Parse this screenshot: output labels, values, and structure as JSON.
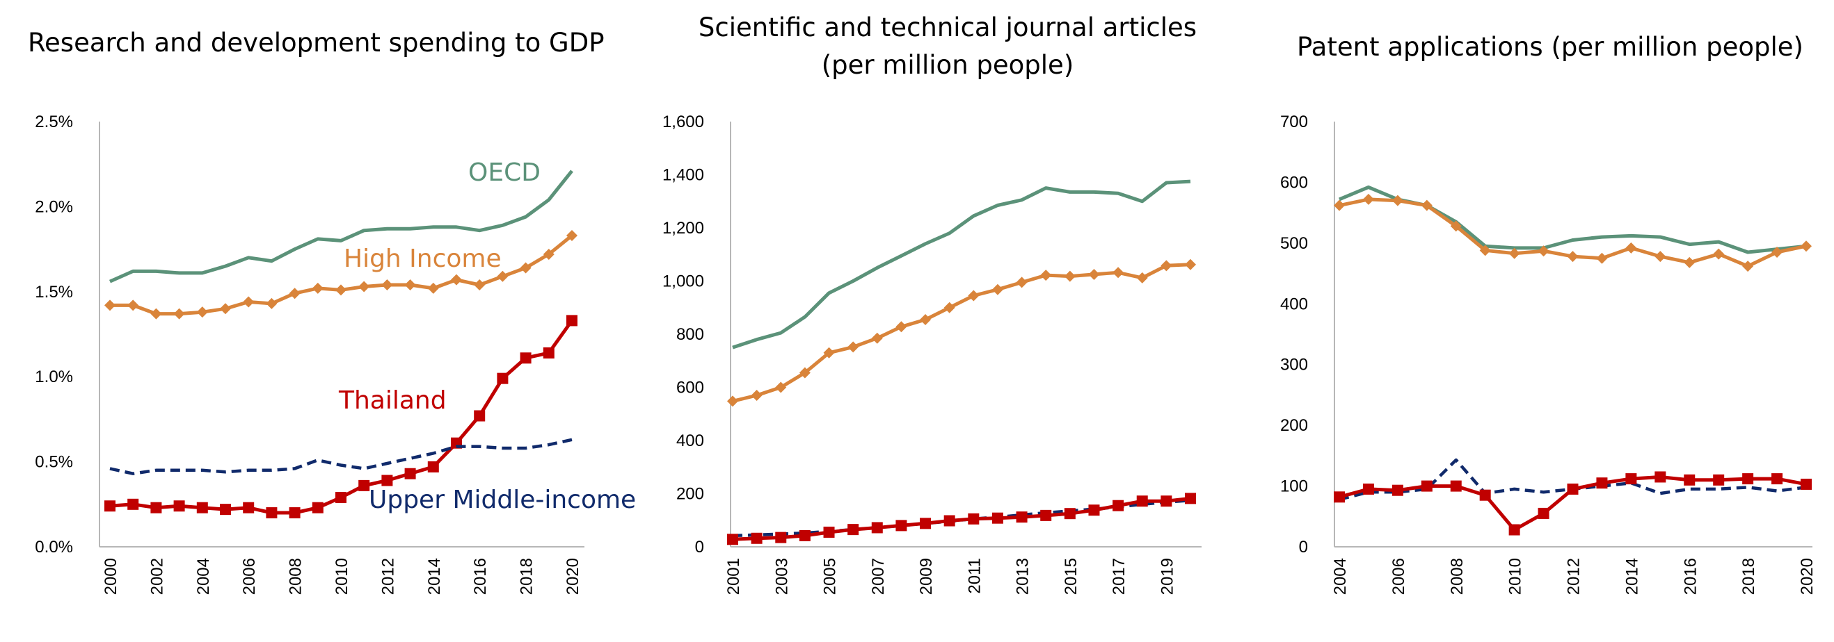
{
  "colors": {
    "oecd": "#5b9279",
    "high_income": "#d9843a",
    "thailand": "#c00000",
    "upper_middle": "#102a6b"
  },
  "chart_data": [
    {
      "type": "line",
      "title": "Research and development spending to GDP",
      "xlabel": "",
      "ylabel": "",
      "ylim": [
        0,
        2.5
      ],
      "yticks": [
        "0.0%",
        "0.5%",
        "1.0%",
        "1.5%",
        "2.0%",
        "2.5%"
      ],
      "x": [
        2000,
        2001,
        2002,
        2003,
        2004,
        2005,
        2006,
        2007,
        2008,
        2009,
        2010,
        2011,
        2012,
        2013,
        2014,
        2015,
        2016,
        2017,
        2018,
        2019,
        2020
      ],
      "xticks": [
        "2000",
        "2002",
        "2004",
        "2006",
        "2008",
        "2010",
        "2012",
        "2014",
        "2016",
        "2018",
        "2020"
      ],
      "grid": false,
      "series": [
        {
          "name": "OECD",
          "style": "solid",
          "marker": "none",
          "color": "#5b9279",
          "values": [
            1.56,
            1.62,
            1.62,
            1.61,
            1.61,
            1.65,
            1.7,
            1.68,
            1.75,
            1.81,
            1.8,
            1.86,
            1.87,
            1.87,
            1.88,
            1.88,
            1.86,
            1.89,
            1.94,
            2.04,
            2.21
          ]
        },
        {
          "name": "High Income",
          "style": "solid",
          "marker": "diamond",
          "color": "#d9843a",
          "values": [
            1.42,
            1.42,
            1.37,
            1.37,
            1.38,
            1.4,
            1.44,
            1.43,
            1.49,
            1.52,
            1.51,
            1.53,
            1.54,
            1.54,
            1.52,
            1.57,
            1.54,
            1.59,
            1.64,
            1.72,
            1.83
          ]
        },
        {
          "name": "Thailand",
          "style": "solid",
          "marker": "square",
          "color": "#c00000",
          "values": [
            0.24,
            0.25,
            0.23,
            0.24,
            0.23,
            0.22,
            0.23,
            0.2,
            0.2,
            0.23,
            0.29,
            0.36,
            0.39,
            0.43,
            0.47,
            0.61,
            0.77,
            0.99,
            1.11,
            1.14,
            1.33
          ]
        },
        {
          "name": "Upper Middle-income",
          "style": "dashed",
          "marker": "none",
          "color": "#102a6b",
          "values": [
            0.46,
            0.43,
            0.45,
            0.45,
            0.45,
            0.44,
            0.45,
            0.45,
            0.46,
            0.51,
            0.48,
            0.46,
            0.49,
            0.52,
            0.55,
            0.59,
            0.59,
            0.58,
            0.58,
            0.6,
            0.63
          ]
        }
      ]
    },
    {
      "type": "line",
      "title": "Scientific and technical journal articles (per million people)",
      "title_lines": [
        "Scientific and technical journal articles",
        "(per million people)"
      ],
      "xlabel": "",
      "ylabel": "",
      "ylim": [
        0,
        1600
      ],
      "yticks": [
        "0",
        "200",
        "400",
        "600",
        "800",
        "1,000",
        "1,200",
        "1,400",
        "1,600"
      ],
      "x": [
        2001,
        2002,
        2003,
        2004,
        2005,
        2006,
        2007,
        2008,
        2009,
        2010,
        2011,
        2012,
        2013,
        2014,
        2015,
        2016,
        2017,
        2018,
        2019,
        2020
      ],
      "xticks": [
        "2001",
        "2003",
        "2005",
        "2007",
        "2009",
        "2011",
        "2013",
        "2015",
        "2017",
        "2019"
      ],
      "grid": false,
      "series": [
        {
          "name": "OECD",
          "style": "solid",
          "marker": "none",
          "color": "#5b9279",
          "values": [
            750,
            780,
            805,
            865,
            955,
            1000,
            1050,
            1095,
            1140,
            1180,
            1245,
            1285,
            1305,
            1350,
            1335,
            1335,
            1330,
            1300,
            1370,
            1375
          ]
        },
        {
          "name": "High Income",
          "style": "solid",
          "marker": "diamond",
          "color": "#d9843a",
          "values": [
            548,
            570,
            600,
            655,
            730,
            752,
            785,
            828,
            855,
            900,
            945,
            968,
            995,
            1022,
            1018,
            1025,
            1032,
            1012,
            1058,
            1062
          ]
        },
        {
          "name": "Upper Middle-income",
          "style": "dashed",
          "marker": "none",
          "color": "#102a6b",
          "values": [
            42,
            45,
            48,
            52,
            58,
            65,
            72,
            80,
            88,
            96,
            105,
            112,
            120,
            128,
            135,
            142,
            150,
            160,
            168,
            175
          ]
        },
        {
          "name": "Thailand",
          "style": "solid",
          "marker": "square",
          "color": "#c00000",
          "values": [
            28,
            32,
            35,
            42,
            55,
            65,
            72,
            80,
            88,
            98,
            105,
            108,
            112,
            118,
            125,
            138,
            155,
            172,
            172,
            182
          ]
        }
      ]
    },
    {
      "type": "line",
      "title": "Patent applications (per million people)",
      "xlabel": "",
      "ylabel": "",
      "ylim": [
        0,
        700
      ],
      "yticks": [
        "0",
        "100",
        "200",
        "300",
        "400",
        "500",
        "600",
        "700"
      ],
      "x": [
        2004,
        2005,
        2006,
        2007,
        2008,
        2009,
        2010,
        2011,
        2012,
        2013,
        2014,
        2015,
        2016,
        2017,
        2018,
        2019,
        2020
      ],
      "xticks": [
        "2004",
        "2006",
        "2008",
        "2010",
        "2012",
        "2014",
        "2016",
        "2018",
        "2020"
      ],
      "grid": false,
      "series": [
        {
          "name": "OECD",
          "style": "solid",
          "marker": "none",
          "color": "#5b9279",
          "values": [
            572,
            592,
            572,
            562,
            535,
            495,
            492,
            492,
            505,
            510,
            512,
            510,
            498,
            502,
            485,
            490,
            495
          ]
        },
        {
          "name": "High Income",
          "style": "solid",
          "marker": "diamond",
          "color": "#d9843a",
          "values": [
            562,
            572,
            570,
            562,
            528,
            488,
            483,
            487,
            478,
            475,
            492,
            478,
            468,
            482,
            462,
            485,
            495
          ]
        },
        {
          "name": "Upper Middle-income",
          "style": "dashed",
          "marker": "none",
          "color": "#102a6b",
          "values": [
            78,
            90,
            90,
            95,
            143,
            88,
            95,
            90,
            95,
            100,
            105,
            88,
            95,
            95,
            98,
            92,
            98
          ]
        },
        {
          "name": "Thailand",
          "style": "solid",
          "marker": "square",
          "color": "#c00000",
          "values": [
            82,
            95,
            93,
            100,
            100,
            85,
            28,
            55,
            95,
            105,
            112,
            115,
            110,
            110,
            112,
            112,
            103
          ]
        }
      ]
    }
  ],
  "labels": {
    "oecd": "OECD",
    "high_income": "High Income",
    "thailand": "Thailand",
    "upper_middle": "Upper Middle-income"
  }
}
